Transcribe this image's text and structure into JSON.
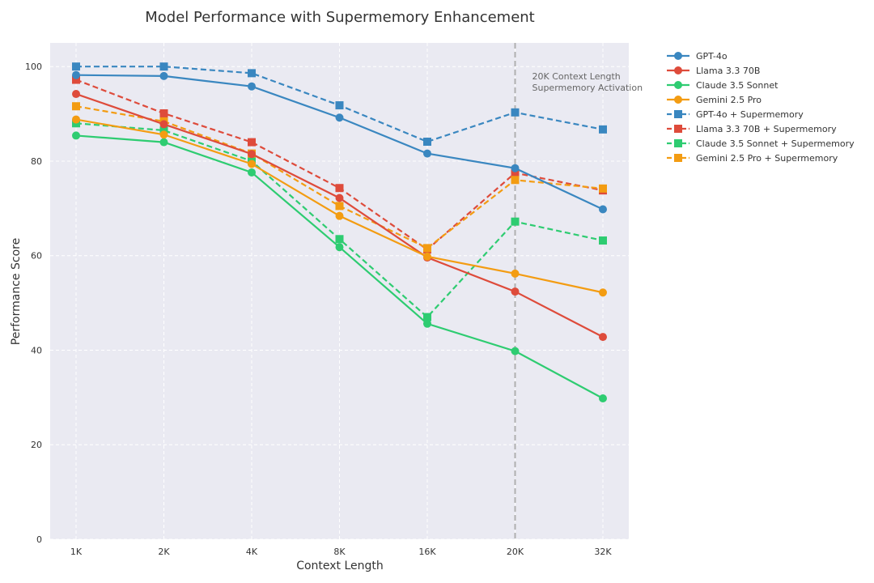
{
  "chart_data": {
    "type": "line",
    "title": "Model Performance with Supermemory Enhancement",
    "xlabel": "Context Length",
    "ylabel": "Performance Score",
    "categories": [
      "1K",
      "2K",
      "4K",
      "8K",
      "16K",
      "20K",
      "32K"
    ],
    "ylim": [
      0,
      105
    ],
    "yticks": [
      0,
      20,
      40,
      60,
      80,
      100
    ],
    "grid": true,
    "legend_position": "outside-right",
    "series": [
      {
        "name": "GPT-4o",
        "color": "#3a87c0",
        "marker": "circle",
        "dashed": false,
        "values": [
          98.2,
          98.0,
          95.8,
          89.2,
          81.6,
          78.5,
          69.8
        ]
      },
      {
        "name": "Llama 3.3 70B",
        "color": "#de4b3b",
        "marker": "circle",
        "dashed": false,
        "values": [
          94.2,
          87.8,
          81.5,
          72.2,
          59.6,
          52.4,
          42.8
        ]
      },
      {
        "name": "Claude 3.5 Sonnet",
        "color": "#2ecc71",
        "marker": "circle",
        "dashed": false,
        "values": [
          85.4,
          84.0,
          77.6,
          61.8,
          45.6,
          39.8,
          29.8
        ]
      },
      {
        "name": "Gemini 2.5 Pro",
        "color": "#f39c12",
        "marker": "circle",
        "dashed": false,
        "values": [
          88.8,
          85.6,
          79.4,
          68.4,
          59.8,
          56.2,
          52.2
        ]
      },
      {
        "name": "GPT-4o + Supermemory",
        "color": "#3a87c0",
        "marker": "square",
        "dashed": true,
        "values": [
          100.0,
          100.0,
          98.6,
          91.8,
          84.1,
          90.3,
          86.7
        ]
      },
      {
        "name": "Llama 3.3 70B + Supermemory",
        "color": "#de4b3b",
        "marker": "square",
        "dashed": true,
        "values": [
          97.2,
          90.1,
          84.0,
          74.3,
          61.3,
          77.5,
          73.8
        ]
      },
      {
        "name": "Claude 3.5 Sonnet + Supermemory",
        "color": "#2ecc71",
        "marker": "square",
        "dashed": true,
        "values": [
          88.0,
          86.5,
          80.0,
          63.5,
          47.0,
          67.2,
          63.2
        ]
      },
      {
        "name": "Gemini 2.5 Pro + Supermemory",
        "color": "#f39c12",
        "marker": "square",
        "dashed": true,
        "values": [
          91.6,
          88.4,
          81.6,
          70.5,
          61.6,
          76.0,
          74.2
        ]
      }
    ],
    "annotations": [
      {
        "at_category": "20K",
        "style": "vertical-dashed-line",
        "color": "#b0b0b0",
        "text": [
          "20K Context Length",
          "Supermemory Activation"
        ]
      }
    ]
  }
}
